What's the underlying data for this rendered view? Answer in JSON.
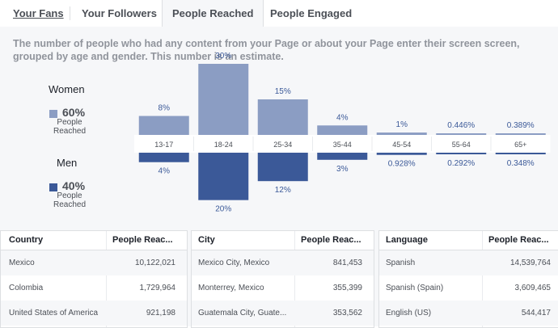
{
  "tabs": {
    "items": [
      {
        "label": "Your Fans"
      },
      {
        "label": "Your Followers"
      },
      {
        "label": "People Reached"
      },
      {
        "label": "People Engaged"
      }
    ],
    "active": "People Reached"
  },
  "description": "The number of people who had any content from your Page or about your Page enter their screen screen, grouped by age and gender. This number is an estimate.",
  "legend": {
    "women": {
      "title": "Women",
      "percent": "60%",
      "label_line1": "People",
      "label_line2": "Reached",
      "color": "#8b9dc3"
    },
    "men": {
      "title": "Men",
      "percent": "40%",
      "label_line1": "People",
      "label_line2": "Reached",
      "color": "#3b5998"
    }
  },
  "chart_data": {
    "type": "bar",
    "categories": [
      "13-17",
      "18-24",
      "25-34",
      "35-44",
      "45-54",
      "55-64",
      "65+"
    ],
    "series": [
      {
        "name": "Women",
        "values": [
          8,
          30,
          15,
          4,
          1,
          0.446,
          0.389
        ],
        "labels": [
          "8%",
          "30%",
          "15%",
          "4%",
          "1%",
          "0.446%",
          "0.389%"
        ],
        "color": "#8b9dc3"
      },
      {
        "name": "Men",
        "values": [
          4,
          20,
          12,
          3,
          0.928,
          0.292,
          0.348
        ],
        "labels": [
          "4%",
          "20%",
          "12%",
          "3%",
          "0.928%",
          "0.292%",
          "0.348%"
        ],
        "color": "#3b5998"
      }
    ],
    "ylim": [
      0,
      30
    ]
  },
  "tables": [
    {
      "headers": [
        "Country",
        "People Reac..."
      ],
      "rows": [
        [
          "Mexico",
          "10,122,021"
        ],
        [
          "Colombia",
          "1,729,964"
        ],
        [
          "United States of America",
          "921,198"
        ]
      ]
    },
    {
      "headers": [
        "City",
        "People Reac..."
      ],
      "rows": [
        [
          "Mexico City, Mexico",
          "841,453"
        ],
        [
          "Monterrey, Mexico",
          "355,399"
        ],
        [
          "Guatemala City, Guate...",
          "353,562"
        ]
      ]
    },
    {
      "headers": [
        "Language",
        "People Reac..."
      ],
      "rows": [
        [
          "Spanish",
          "14,539,764"
        ],
        [
          "Spanish (Spain)",
          "3,609,465"
        ],
        [
          "English (US)",
          "544,417"
        ]
      ]
    }
  ]
}
